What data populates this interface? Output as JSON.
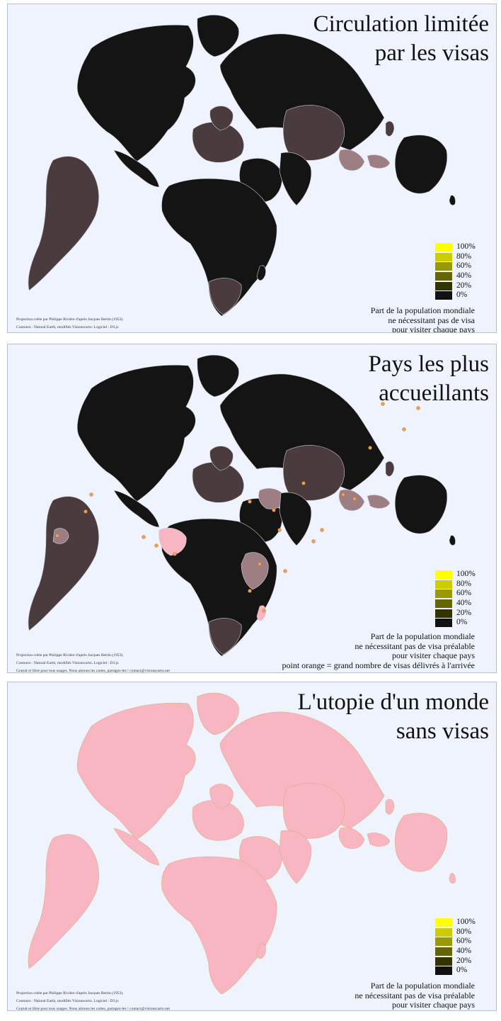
{
  "colors": {
    "background": "#eef3fd",
    "dark_land": "#151414",
    "brown_land": "#4a3b3e",
    "mauve_land": "#9d7f83",
    "pink_land": "#f7b6c1",
    "visa_point": "#f2a14e",
    "border_dark": "#cfcfcf",
    "border_pink": "#d9b27a"
  },
  "legend": {
    "items": [
      {
        "label": "100%",
        "color": "#ffff00"
      },
      {
        "label": "80%",
        "color": "#cccc00"
      },
      {
        "label": "60%",
        "color": "#999900"
      },
      {
        "label": "40%",
        "color": "#666600"
      },
      {
        "label": "20%",
        "color": "#333300"
      },
      {
        "label": "0%",
        "color": "#111111"
      }
    ]
  },
  "credits": {
    "line1": "Projection créée par Philippe Rivière d'après Jacques Bertin (1953).",
    "line2": "Contours : Natural Earth, modifiés Visionscarto. Logiciel : D3.js",
    "line3": "Gratuit et libre pour tous usages. Nous aimons les cartes, partagez-les ! contact@visionscarto.net"
  },
  "panels": [
    {
      "id": "visa-restrictions",
      "title_line1": "Circulation limitée",
      "title_line2": "par les visas",
      "caption_line1": "Part de la population mondiale",
      "caption_line2": "ne nécessitant pas de visa",
      "caption_line3": "pour visiter chaque pays"
    },
    {
      "id": "most-welcoming",
      "title_line1": "Pays les plus",
      "title_line2": "accueillants",
      "caption_line1": "Part de la population mondiale",
      "caption_line2": "ne nécessitant pas de visa préalable",
      "caption_line3": "pour visiter chaque pays",
      "caption_line4": "point orange = grand nombre de visas délivrés à l'arrivée"
    },
    {
      "id": "visa-free-utopia",
      "title_line1": "L'utopie d'un monde",
      "title_line2": "sans visas",
      "caption_line1": "Part de la population mondiale",
      "caption_line2": "ne nécessitant pas de visa préalable",
      "caption_line3": "pour visiter chaque pays"
    }
  ]
}
